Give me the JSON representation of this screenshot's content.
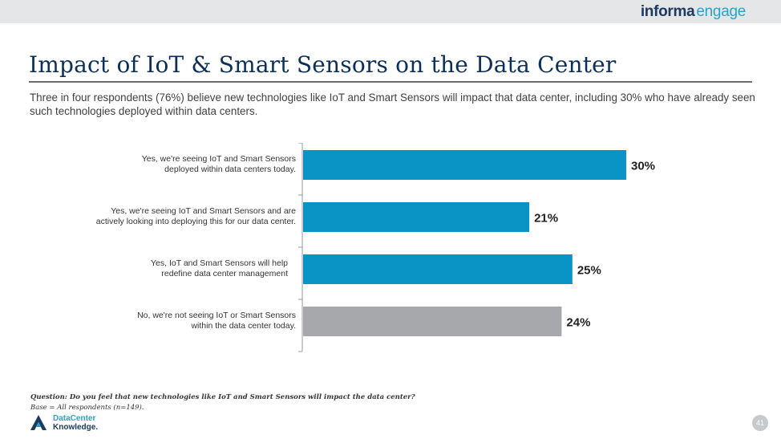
{
  "brand": {
    "part1": "informa",
    "part2": "engage"
  },
  "title": "Impact of IoT & Smart Sensors on the Data Center",
  "subtitle": "Three in four respondents (76%) believe new technologies like IoT and Smart Sensors will impact that data center, including 30% who have already seen such technologies deployed within data centers.",
  "chart_data": {
    "type": "bar",
    "orientation": "horizontal",
    "title": "",
    "xlabel": "",
    "ylabel": "",
    "xlim": [
      0,
      35
    ],
    "grid": false,
    "categories": [
      [
        "Yes, we're seeing IoT and Smart Sensors",
        "deployed within data centers today."
      ],
      [
        "Yes, we're seeing IoT and Smart Sensors and are",
        "actively looking into deploying this for our data center."
      ],
      [
        "Yes, IoT and Smart Sensors will help",
        "redefine data center management"
      ],
      [
        "No, we're not seeing IoT or Smart Sensors",
        "within the data center today."
      ]
    ],
    "values": [
      30,
      21,
      25,
      24
    ],
    "value_labels": [
      "30%",
      "21%",
      "25%",
      "24%"
    ],
    "colors": [
      "#0a94c6",
      "#0a94c6",
      "#0a94c6",
      "#a6a8ab"
    ]
  },
  "footnote": {
    "question": "Question: Do you feel that new technologies like IoT and Smart Sensors will impact the data center?",
    "base": "Base = All respondents (n=149)."
  },
  "logo": {
    "line1": "DataCenter",
    "line2": "Knowledge."
  },
  "page_number": "41"
}
